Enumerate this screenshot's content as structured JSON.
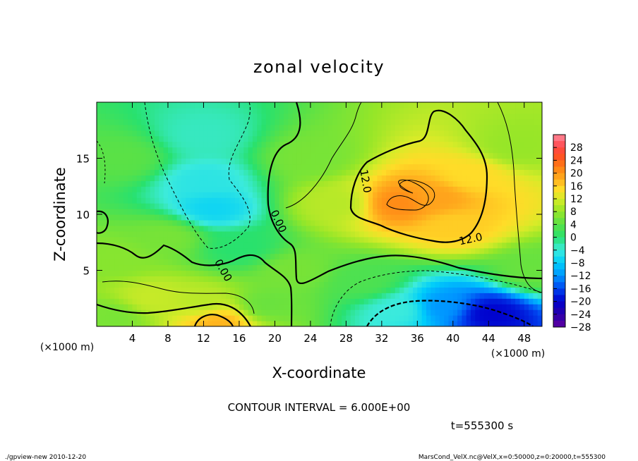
{
  "chart_data": {
    "type": "heatmap",
    "title": "zonal velocity",
    "xlabel": "X-coordinate",
    "ylabel": "Z-coordinate",
    "x_unit": "(×1000 m)",
    "y_unit": "(×1000 m)",
    "xlim": [
      0,
      50
    ],
    "ylim": [
      0,
      20
    ],
    "x_ticks": [
      "4",
      "8",
      "12",
      "16",
      "20",
      "24",
      "28",
      "32",
      "36",
      "40",
      "44",
      "48"
    ],
    "y_ticks": [
      "5",
      "10",
      "15"
    ],
    "colorbar_labels": [
      "28",
      "24",
      "20",
      "16",
      "12",
      "8",
      "4",
      "0",
      "−4",
      "−8",
      "−12",
      "−16",
      "−20",
      "−24",
      "−28"
    ],
    "color_levels": [
      30,
      28,
      26,
      24,
      22,
      20,
      18,
      16,
      14,
      12,
      10,
      8,
      6,
      4,
      2,
      0,
      -2,
      -4,
      -6,
      -8,
      -10,
      -12,
      -14,
      -16,
      -18,
      -20,
      -22,
      -24,
      -26,
      -28,
      -30
    ],
    "contour_labels": [
      "12.0",
      "12.0",
      "0.00",
      "0.00"
    ],
    "contour_interval": "CONTOUR INTERVAL = 6.000E+00",
    "time": "t=555300 s",
    "features": [
      {
        "x": 38,
        "z": 11.5,
        "value": 17
      },
      {
        "x": 34,
        "z": 11,
        "value": 19
      },
      {
        "x": 40,
        "z": 9,
        "value": 14
      },
      {
        "x": 42,
        "z": 13.5,
        "value": 13
      },
      {
        "x": 44,
        "z": 1.2,
        "value": -22
      },
      {
        "x": 39,
        "z": 1.8,
        "value": -14
      },
      {
        "x": 34,
        "z": 1.5,
        "value": -6
      },
      {
        "x": 13.5,
        "z": 0.5,
        "value": 16
      },
      {
        "x": 12,
        "z": 2,
        "value": 8
      },
      {
        "x": 6,
        "z": 2.5,
        "value": 9
      },
      {
        "x": 2,
        "z": 1,
        "value": 4
      },
      {
        "x": 13,
        "z": 10.5,
        "value": -9
      },
      {
        "x": 12,
        "z": 13,
        "value": -7
      },
      {
        "x": 12,
        "z": 17,
        "value": -5
      },
      {
        "x": 16,
        "z": 7,
        "value": -2
      },
      {
        "x": 3,
        "z": 15,
        "value": 2
      },
      {
        "x": 2,
        "z": 6,
        "value": 5
      },
      {
        "x": 24,
        "z": 15,
        "value": 4
      },
      {
        "x": 27,
        "z": 11,
        "value": 8
      },
      {
        "x": 22,
        "z": 5,
        "value": 4
      },
      {
        "x": 47,
        "z": 16,
        "value": 6
      },
      {
        "x": 49,
        "z": 5,
        "value": 3
      },
      {
        "x": 30,
        "z": 4,
        "value": 1
      },
      {
        "x": 19,
        "z": 2,
        "value": 3
      },
      {
        "x": 8,
        "z": 8,
        "value": 4
      }
    ]
  },
  "footer": {
    "left": "./gpview-new  2010-12-20",
    "right": "MarsCond_VelX.nc@VelX,x=0:50000,z=0:20000,t=555300"
  }
}
